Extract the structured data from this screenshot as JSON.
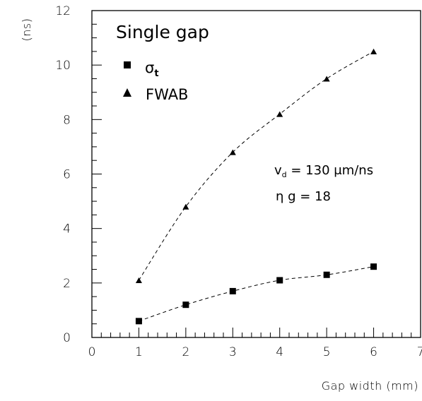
{
  "chart_data": {
    "type": "scatter",
    "title": "Single gap",
    "xlabel": "Gap width (mm)",
    "ylabel": "(ns)",
    "xlim": [
      0,
      7
    ],
    "ylim": [
      0,
      12
    ],
    "x_ticks": [
      "0",
      "1",
      "2",
      "3",
      "4",
      "5",
      "6",
      "7"
    ],
    "y_ticks": [
      "0",
      "2",
      "4",
      "6",
      "8",
      "10",
      "12"
    ],
    "grid": false,
    "legend_position": "top-left",
    "series": [
      {
        "name": "σt",
        "marker": "square",
        "line": "dashed",
        "x": [
          1,
          2,
          3,
          4,
          5,
          6
        ],
        "y": [
          0.6,
          1.2,
          1.7,
          2.1,
          2.3,
          2.6
        ]
      },
      {
        "name": "FWAB",
        "marker": "triangle",
        "line": "dashed",
        "x": [
          1,
          2,
          3,
          4,
          5,
          6
        ],
        "y": [
          2.1,
          4.8,
          6.8,
          8.2,
          9.5,
          10.5
        ]
      }
    ],
    "annotations": {
      "line1_main": "v",
      "line1_sub": "d",
      "line1_rest": " = 130 μm/ns",
      "line2": "η g = 18"
    },
    "legend": {
      "sigma_main": "σ",
      "sigma_sub": "t",
      "fwab": "FWAB"
    }
  }
}
